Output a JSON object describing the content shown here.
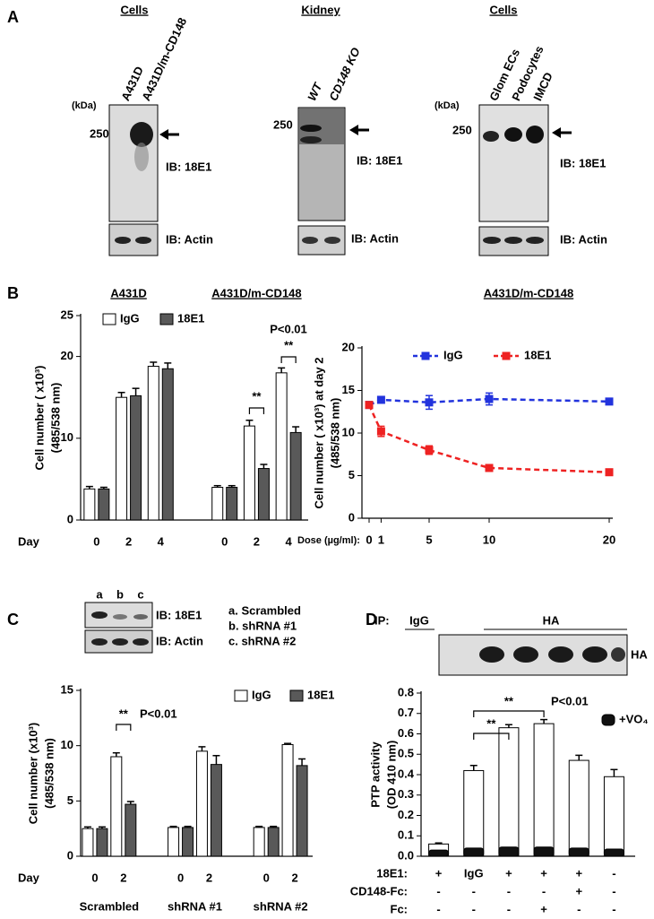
{
  "panels": {
    "A": {
      "label": "A",
      "blots": [
        {
          "header": "Cells",
          "lanes": [
            "A431D",
            "A431D/m-CD148"
          ],
          "kda": "(kDa)",
          "marker": 250,
          "ib": [
            "IB: 18E1",
            "IB: Actin"
          ]
        },
        {
          "header": "Kidney",
          "lanes": [
            "WT",
            "CD148 KO"
          ],
          "marker": 250,
          "ib": [
            "IB: 18E1",
            "IB: Actin"
          ]
        },
        {
          "header": "Cells",
          "lanes": [
            "Glom ECs",
            "Podocytes",
            "IMCD"
          ],
          "kda": "(kDa)",
          "marker": 250,
          "ib": [
            "IB: 18E1",
            "IB: Actin"
          ]
        }
      ]
    },
    "B": {
      "label": "B"
    },
    "C": {
      "label": "C",
      "blot": {
        "lanes": [
          "a",
          "b",
          "c"
        ],
        "ib": [
          "IB: 18E1",
          "IB: Actin"
        ],
        "key": [
          "a. Scrambled",
          "b. shRNA #1",
          "c. shRNA #2"
        ]
      }
    },
    "D": {
      "label": "D",
      "blot": {
        "ip": "IP:",
        "lanes": [
          "IgG",
          "HA"
        ],
        "ib": "HA"
      }
    }
  },
  "chart_data": [
    {
      "type": "bar",
      "ylabel": [
        "Cell number ( x10³)",
        "(485/538 nm)"
      ],
      "xlabel": "Day",
      "groups": [
        "A431D",
        "A431D/m-CD148"
      ],
      "categories": [
        "0",
        "2",
        "4",
        null,
        "0",
        "2",
        "4"
      ],
      "series": [
        {
          "name": "IgG",
          "color": "#ffffff",
          "values": [
            3.8,
            15,
            18.8,
            null,
            4,
            11.5,
            18
          ],
          "errors": [
            0.3,
            0.6,
            0.5,
            null,
            0.2,
            0.7,
            0.6
          ]
        },
        {
          "name": "18E1",
          "color": "#595959",
          "values": [
            3.8,
            15.2,
            18.5,
            null,
            4,
            6.3,
            10.7
          ],
          "errors": [
            0.2,
            0.9,
            0.7,
            null,
            0.2,
            0.5,
            0.7
          ]
        }
      ],
      "ylim": [
        0,
        25
      ],
      "yticks": [
        0,
        10,
        20,
        25
      ],
      "annotations": [
        "**",
        "**",
        "P<0.01"
      ]
    },
    {
      "type": "line",
      "title": "A431D/m-CD148",
      "ylabel": [
        "Cell number ( x10³) at day 2",
        "(485/538 nm)"
      ],
      "xlabel": "Dose (µg/ml):",
      "x": [
        0,
        1,
        5,
        10,
        20
      ],
      "series": [
        {
          "name": "IgG",
          "color": "#2233dd",
          "values": [
            13.3,
            13.9,
            13.6,
            14,
            13.7
          ],
          "errors": [
            0.3,
            0.3,
            0.8,
            0.7,
            0.3
          ]
        },
        {
          "name": "18E1",
          "color": "#ee2222",
          "values": [
            13.3,
            10.2,
            8,
            5.9,
            5.4
          ],
          "errors": [
            0.3,
            0.6,
            0.5,
            0.2,
            0.3
          ]
        }
      ],
      "xlim": [
        0,
        20
      ],
      "xticks": [
        0,
        1,
        5,
        10,
        20
      ],
      "ylim": [
        0,
        20
      ],
      "yticks": [
        0,
        5,
        10,
        15,
        20
      ]
    },
    {
      "type": "bar",
      "ylabel": [
        "Cell number (x10³)",
        "(485/538 nm)"
      ],
      "xlabel": "Day",
      "groups": [
        "Scrambled",
        "shRNA #1",
        "shRNA #2"
      ],
      "categories": [
        "0",
        "2",
        null,
        "0",
        "2",
        null,
        "0",
        "2"
      ],
      "series": [
        {
          "name": "IgG",
          "color": "#ffffff",
          "values": [
            2.5,
            9,
            null,
            2.6,
            9.5,
            null,
            2.6,
            10.1
          ],
          "errors": [
            0.15,
            0.35,
            null,
            0.1,
            0.4,
            null,
            0.1,
            0.1
          ]
        },
        {
          "name": "18E1",
          "color": "#595959",
          "values": [
            2.5,
            4.7,
            null,
            2.6,
            8.3,
            null,
            2.6,
            8.2
          ],
          "errors": [
            0.15,
            0.25,
            null,
            0.1,
            0.8,
            null,
            0.1,
            0.6
          ]
        }
      ],
      "ylim": [
        0,
        15
      ],
      "yticks": [
        0,
        5,
        10,
        15
      ],
      "annotations": [
        "**",
        "P<0.01"
      ]
    },
    {
      "type": "bar",
      "ylabel": [
        "PTP activity",
        "(OD 410 nm)"
      ],
      "series": [
        {
          "color": "#ffffff",
          "values": [
            0.06,
            0.42,
            0.63,
            0.65,
            0.47,
            0.39
          ],
          "errors": [
            0.005,
            0.025,
            0.015,
            0.02,
            0.025,
            0.035
          ]
        },
        {
          "name": "+VO₄",
          "color": "#111111",
          "values": [
            0.03,
            0.04,
            0.045,
            0.045,
            0.04,
            0.035
          ]
        }
      ],
      "ylim": [
        0,
        0.8
      ],
      "yticks": [
        {
          "value": 0,
          "label": "0.0"
        },
        0.1,
        0.2,
        0.3,
        0.4,
        0.5,
        0.6,
        0.7,
        0.8
      ],
      "condition_rows": [
        {
          "label": "18E1:",
          "cells": [
            "+",
            "IgG",
            "+",
            "+",
            "+",
            "-"
          ]
        },
        {
          "label": "CD148-Fc:",
          "cells": [
            "-",
            "-",
            "-",
            "-",
            "+",
            "-"
          ]
        },
        {
          "label": "Fc:",
          "cells": [
            "-",
            "-",
            "-",
            "+",
            "-",
            "-"
          ]
        }
      ],
      "annotations": [
        "**",
        "**",
        "P<0.01"
      ]
    }
  ]
}
